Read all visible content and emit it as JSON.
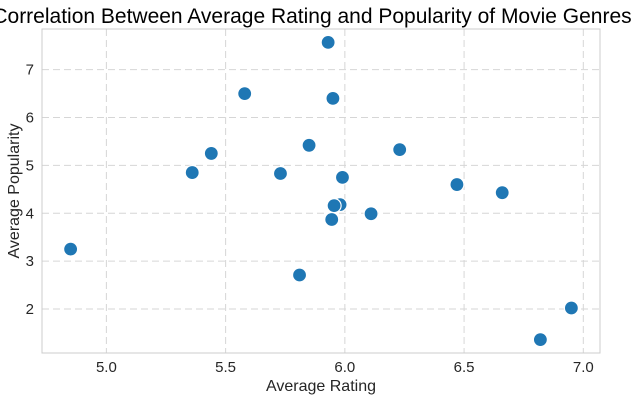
{
  "chart_data": {
    "type": "scatter",
    "title": "Correlation Between Average Rating and Popularity of Movie Genres",
    "xlabel": "Average Rating",
    "ylabel": "Average Popularity",
    "xlim": [
      4.73,
      7.07
    ],
    "ylim": [
      1.08,
      7.85
    ],
    "xticks": [
      "5.0",
      "5.5",
      "6.0",
      "6.5",
      "7.0"
    ],
    "xtick_values": [
      5.0,
      5.5,
      6.0,
      6.5,
      7.0
    ],
    "yticks": [
      "2",
      "3",
      "4",
      "5",
      "6",
      "7"
    ],
    "ytick_values": [
      2,
      3,
      4,
      5,
      6,
      7
    ],
    "grid": true,
    "legend": "none",
    "point_color": "#1f77b4",
    "points": [
      {
        "x": 5.93,
        "y": 7.57
      },
      {
        "x": 5.58,
        "y": 6.5
      },
      {
        "x": 5.95,
        "y": 6.4
      },
      {
        "x": 5.85,
        "y": 5.42
      },
      {
        "x": 6.23,
        "y": 5.33
      },
      {
        "x": 5.44,
        "y": 5.25
      },
      {
        "x": 5.36,
        "y": 4.85
      },
      {
        "x": 5.73,
        "y": 4.83
      },
      {
        "x": 5.99,
        "y": 4.75
      },
      {
        "x": 6.47,
        "y": 4.6
      },
      {
        "x": 6.66,
        "y": 4.43
      },
      {
        "x": 5.98,
        "y": 4.18
      },
      {
        "x": 5.955,
        "y": 4.16
      },
      {
        "x": 6.11,
        "y": 3.99
      },
      {
        "x": 5.945,
        "y": 3.87
      },
      {
        "x": 4.85,
        "y": 3.25
      },
      {
        "x": 5.81,
        "y": 2.71
      },
      {
        "x": 6.95,
        "y": 2.02
      },
      {
        "x": 6.82,
        "y": 1.36
      }
    ]
  }
}
